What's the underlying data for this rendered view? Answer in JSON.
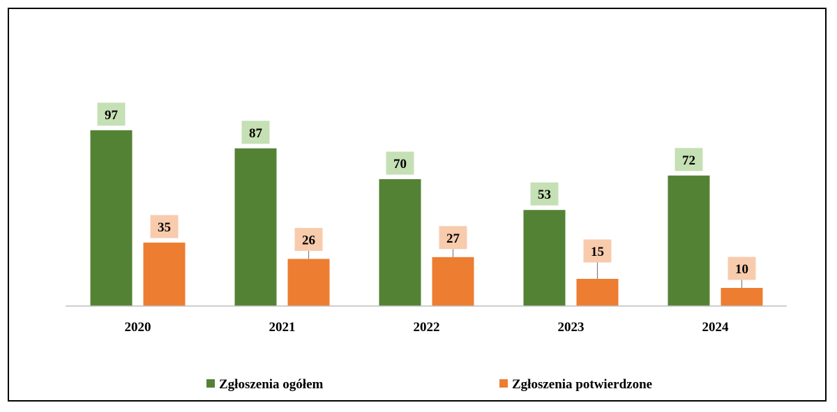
{
  "chart_data": {
    "type": "bar",
    "categories": [
      "2020",
      "2021",
      "2022",
      "2023",
      "2024"
    ],
    "series": [
      {
        "name": "Zgłoszenia ogółem",
        "values": [
          97,
          87,
          70,
          53,
          72
        ],
        "color": "#548235",
        "label_bg": "#C5E0B4"
      },
      {
        "name": "Zgłoszenia potwierdzone",
        "values": [
          35,
          26,
          27,
          15,
          10
        ],
        "color": "#ED7D31",
        "label_bg": "#F8CBAD"
      }
    ],
    "title": "",
    "xlabel": "",
    "ylabel": "",
    "ylim": [
      0,
      100
    ],
    "grid": false,
    "y_axis_visible": false,
    "data_labels": true,
    "legend_position": "bottom",
    "axis_color": "#BFBFBF",
    "leader_line_color": "#7F7F7F"
  }
}
